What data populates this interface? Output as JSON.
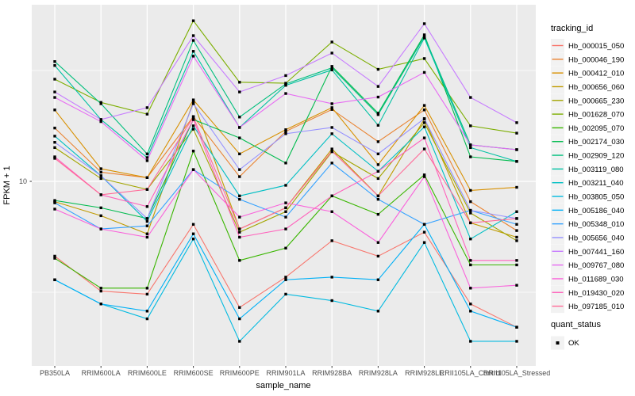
{
  "figure": {
    "y_axis_title": "FPKM + 1",
    "x_axis_title": "sample_name",
    "y_tick_label": "10",
    "legend_title_tracking": "tracking_id",
    "legend_title_quant": "quant_status",
    "quant_ok_label": "OK"
  },
  "colors": {
    "panel_bg": "#EBEBEB",
    "grid": "#FFFFFF",
    "tick_mark": "#333333",
    "tick_text": "#4D4D4D",
    "point": "#000000",
    "legend_key_bg": "#F2F2F2"
  },
  "chart_data": {
    "type": "line",
    "title": "",
    "xlabel": "sample_name",
    "ylabel": "FPKM + 1",
    "y_scale": "log10",
    "y_major_tick": 10,
    "y_minor_ticks": [
      3.162,
      31.62
    ],
    "ylim_approx": [
      1.5,
      62
    ],
    "grid": true,
    "legend_position": "right",
    "point_shape": "filled-square",
    "quant_status_value": "OK",
    "x_categories": [
      "PB350LA",
      "RRIM600LA",
      "RRIM600LE",
      "RRIM600SE",
      "RRIM600PE",
      "RRIM901LA",
      "RRIM928BA",
      "RRIM928LA",
      "RRIM928LE",
      "RRII105LA_Control",
      "RRII105LA_Stressed"
    ],
    "series": [
      {
        "name": "Hb_000015_050",
        "color": "#F8766D",
        "values": [
          4.6,
          3.2,
          3.1,
          6.4,
          2.7,
          3.7,
          5.4,
          4.6,
          5.9,
          2.8,
          2.2
        ]
      },
      {
        "name": "Hb_000046_190",
        "color": "#EA8331",
        "values": [
          17.4,
          11.0,
          10.4,
          19.6,
          10.5,
          16.8,
          21.1,
          15.1,
          21.0,
          8.1,
          6.0
        ]
      },
      {
        "name": "Hb_000412_010",
        "color": "#D89000",
        "values": [
          21.0,
          11.4,
          10.4,
          23.3,
          13.3,
          17.1,
          21.5,
          11.9,
          22.0,
          9.1,
          9.4
        ]
      },
      {
        "name": "Hb_000656_060",
        "color": "#C09B00",
        "values": [
          8.1,
          7.0,
          5.8,
          22.9,
          6.1,
          7.6,
          14.0,
          8.6,
          19.1,
          6.5,
          5.6
        ]
      },
      {
        "name": "Hb_000665_230",
        "color": "#A3A500",
        "values": [
          14.2,
          10.3,
          9.2,
          17.2,
          5.9,
          7.3,
          13.6,
          10.3,
          18.4,
          7.2,
          5.4
        ]
      },
      {
        "name": "Hb_001628_070",
        "color": "#7CAE00",
        "values": [
          28.9,
          22.7,
          20.1,
          53.0,
          28.0,
          27.7,
          42.5,
          32.0,
          35.8,
          17.8,
          16.5
        ]
      },
      {
        "name": "Hb_002095_070",
        "color": "#39B600",
        "values": [
          4.5,
          3.3,
          3.3,
          13.7,
          4.4,
          5.0,
          8.6,
          7.1,
          10.7,
          4.2,
          4.2
        ]
      },
      {
        "name": "Hb_002174_030",
        "color": "#00BB4E",
        "values": [
          8.2,
          7.6,
          6.8,
          19.0,
          15.7,
          12.1,
          33.0,
          20.3,
          45.8,
          12.9,
          12.3
        ]
      },
      {
        "name": "Hb_002909_120",
        "color": "#00BF7D",
        "values": [
          34.7,
          22.4,
          13.3,
          43.2,
          19.5,
          27.5,
          32.5,
          20.0,
          45.0,
          14.6,
          13.9
        ]
      },
      {
        "name": "Hb_003119_080",
        "color": "#00C1A3",
        "values": [
          33.3,
          19.0,
          12.8,
          38.6,
          17.5,
          27.1,
          31.8,
          17.9,
          44.3,
          14.2,
          12.3
        ]
      },
      {
        "name": "Hb_003211_040",
        "color": "#00BFC4",
        "values": [
          16.0,
          10.6,
          6.6,
          17.8,
          8.6,
          9.6,
          16.4,
          11.1,
          17.6,
          5.5,
          7.3
        ]
      },
      {
        "name": "Hb_003805_050",
        "color": "#00BAE0",
        "values": [
          3.6,
          2.8,
          2.4,
          5.5,
          1.9,
          3.1,
          2.9,
          2.6,
          5.3,
          1.9,
          1.9
        ]
      },
      {
        "name": "Hb_005186_040",
        "color": "#00B0F6",
        "values": [
          3.6,
          2.8,
          2.6,
          5.8,
          2.4,
          3.6,
          3.7,
          3.6,
          6.4,
          2.6,
          2.2
        ]
      },
      {
        "name": "Hb_005348_010",
        "color": "#35A2FF",
        "values": [
          8.0,
          6.1,
          6.3,
          11.3,
          8.3,
          6.9,
          12.1,
          8.3,
          6.4,
          7.4,
          6.4
        ]
      },
      {
        "name": "Hb_005656_040",
        "color": "#9590FF",
        "values": [
          15.0,
          10.6,
          6.8,
          22.4,
          11.3,
          16.4,
          17.5,
          13.3,
          19.2,
          7.4,
          6.8
        ]
      },
      {
        "name": "Hb_007441_160",
        "color": "#C77CFF",
        "values": [
          25.3,
          19.0,
          21.5,
          45.4,
          25.3,
          30.0,
          37.9,
          26.8,
          51.4,
          23.9,
          18.4
        ]
      },
      {
        "name": "Hb_009767_080",
        "color": "#E76BF3",
        "values": [
          23.9,
          18.6,
          12.4,
          36.7,
          17.5,
          24.9,
          22.4,
          24.0,
          31.0,
          14.6,
          13.9
        ]
      },
      {
        "name": "Hb_011689_030",
        "color": "#FA62DB",
        "values": [
          7.5,
          6.1,
          5.6,
          11.3,
          6.9,
          8.0,
          7.3,
          5.3,
          10.5,
          3.3,
          3.4
        ]
      },
      {
        "name": "Hb_019430_020",
        "color": "#FF62BC",
        "values": [
          12.9,
          8.7,
          7.7,
          19.0,
          5.6,
          6.1,
          8.6,
          11.1,
          15.7,
          4.4,
          4.4
        ]
      },
      {
        "name": "Hb_097185_010",
        "color": "#FF6A98",
        "values": [
          12.7,
          8.7,
          9.2,
          19.5,
          6.1,
          7.6,
          13.7,
          8.6,
          14.0,
          6.5,
          6.8
        ]
      }
    ]
  }
}
